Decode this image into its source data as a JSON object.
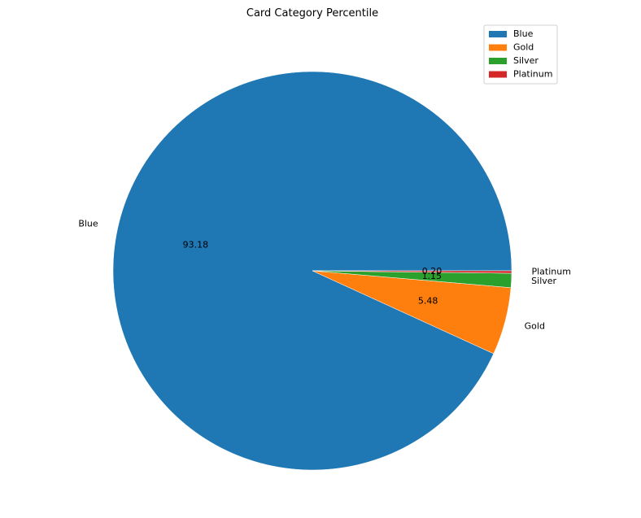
{
  "chart_data": {
    "type": "pie",
    "title": "Card Category Percentile",
    "categories": [
      "Blue",
      "Gold",
      "Silver",
      "Platinum"
    ],
    "values": [
      93.18,
      5.48,
      1.15,
      0.2
    ],
    "value_labels": [
      "93.18",
      "5.48",
      "1.15",
      "0.20"
    ],
    "colors": [
      "#1f77b4",
      "#ff7f0e",
      "#2ca02c",
      "#d62728"
    ],
    "start_angle_deg": 0,
    "direction": "counterclockwise",
    "legend": {
      "placement": "top-right",
      "entries": [
        "Blue",
        "Gold",
        "Silver",
        "Platinum"
      ]
    }
  }
}
